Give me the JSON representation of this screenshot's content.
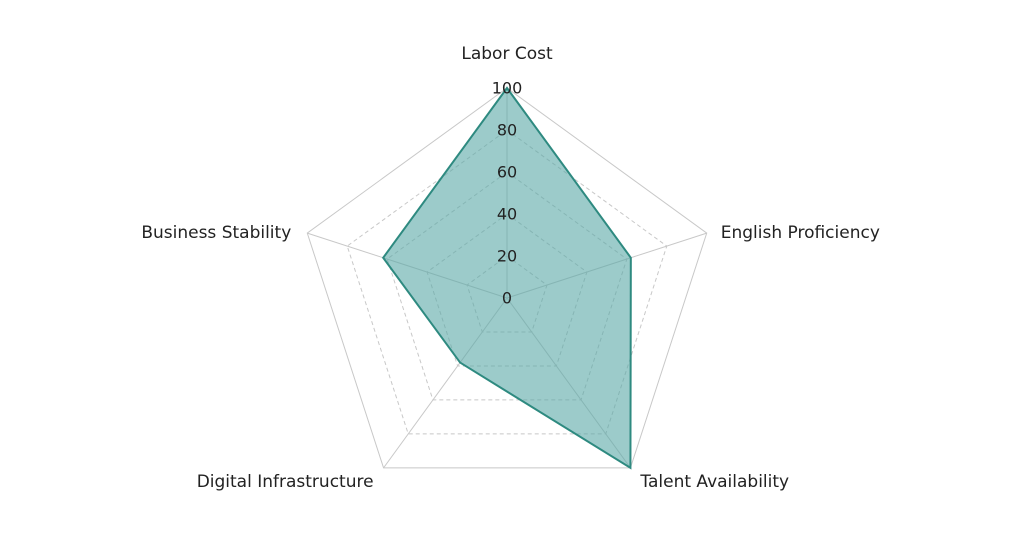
{
  "chart_data": {
    "type": "radar",
    "axes": [
      "Labor Cost",
      "English Proficiency",
      "Talent Availability",
      "Digital Infrastructure",
      "Business Stability"
    ],
    "ticks": [
      "0",
      "20",
      "40",
      "60",
      "80",
      "100"
    ],
    "rmin": 0,
    "rmax": 100,
    "series": [
      {
        "values": [
          100,
          62,
          100,
          38,
          62
        ]
      }
    ],
    "grid": true,
    "colors": {
      "fill": "#5aa9a6",
      "stroke": "#2e8a80"
    }
  }
}
